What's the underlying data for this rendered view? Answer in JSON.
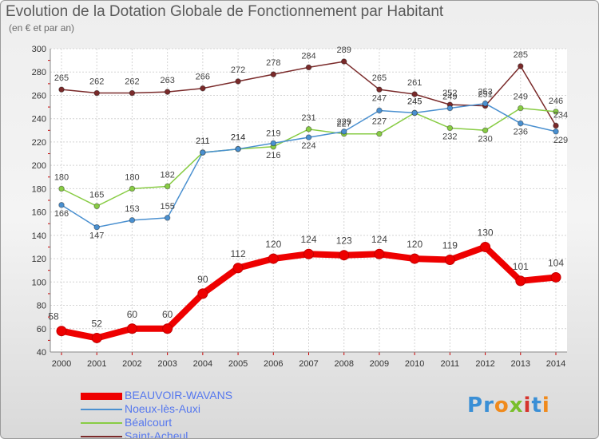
{
  "title": "Evolution de la Dotation Globale de Fonctionnement par Habitant",
  "subtitle": "(en € et par an)",
  "logo": {
    "text": "Proxiti",
    "letters": [
      {
        "ch": "P",
        "color": "#3a8fd6"
      },
      {
        "ch": "r",
        "color": "#3a8fd6"
      },
      {
        "ch": "o",
        "color": "#f08a1c"
      },
      {
        "ch": "x",
        "color": "#79bf2b"
      },
      {
        "ch": "i",
        "color": "#d6332d"
      },
      {
        "ch": "t",
        "color": "#3a8fd6"
      },
      {
        "ch": "i",
        "color": "#f08a1c"
      }
    ]
  },
  "chart_data": {
    "type": "line",
    "title": "Evolution de la Dotation Globale de Fonctionnement par Habitant",
    "subtitle": "(en € et par an)",
    "x": [
      "2000",
      "2001",
      "2002",
      "2003",
      "2004",
      "2005",
      "2006",
      "2007",
      "2008",
      "2009",
      "2010",
      "2011",
      "2012",
      "2013",
      "2014"
    ],
    "ylim": [
      40,
      300
    ],
    "yticks": [
      40,
      60,
      80,
      100,
      120,
      140,
      160,
      180,
      200,
      220,
      240,
      260,
      280,
      300
    ],
    "grid": true,
    "legend_position": "bottom-left",
    "series": [
      {
        "name": "BEAUVOIR-WAVANS",
        "color": "#ee0000",
        "values": [
          58,
          52,
          60,
          60,
          90,
          112,
          120,
          124,
          123,
          124,
          120,
          119,
          130,
          101,
          104
        ],
        "labels": [
          "58",
          "52",
          "60",
          "60",
          "90",
          "112",
          "120",
          "124",
          "123",
          "124",
          "120",
          "119",
          "130",
          "101",
          "104"
        ]
      },
      {
        "name": "Noeux-lès-Auxi",
        "color": "#4a90d0",
        "values": [
          166,
          147,
          153,
          155,
          211,
          214,
          219,
          224,
          229,
          247,
          245,
          249,
          253,
          236,
          229
        ],
        "labels": [
          "166",
          "147",
          "153",
          "155",
          "211",
          "214",
          "219",
          "224",
          "229",
          "247",
          "245",
          "249",
          "253",
          "236",
          "229"
        ]
      },
      {
        "name": "Béalcourt",
        "color": "#88cc44",
        "values": [
          180,
          165,
          180,
          182,
          211,
          214,
          216,
          231,
          227,
          227,
          245,
          232,
          230,
          249,
          246
        ],
        "labels": [
          "180",
          "165",
          "180",
          "182",
          "211",
          "214",
          "216",
          "231",
          "227",
          "227",
          "245",
          "232",
          "230",
          "249",
          "246"
        ]
      },
      {
        "name": "Saint-Acheul",
        "color": "#7a2a2a",
        "values": [
          265,
          262,
          262,
          263,
          266,
          272,
          278,
          284,
          289,
          265,
          261,
          252,
          251,
          285,
          234
        ],
        "labels": [
          "265",
          "262",
          "262",
          "263",
          "266",
          "272",
          "278",
          "284",
          "289",
          "265",
          "261",
          "252",
          "251",
          "285",
          "234"
        ]
      }
    ]
  }
}
